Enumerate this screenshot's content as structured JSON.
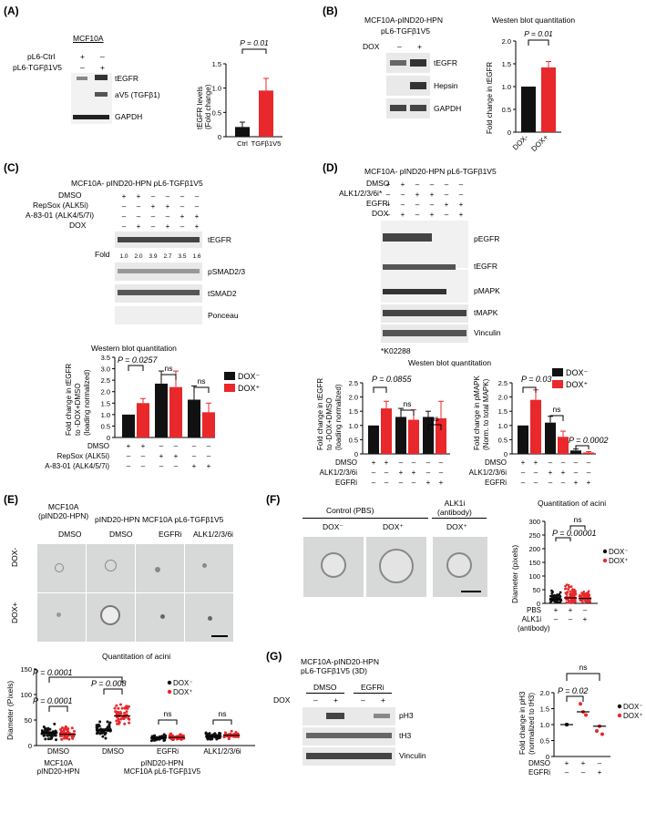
{
  "panelA": {
    "label": "(A)",
    "cell": "MCF10A",
    "rows": [
      "pL6-Ctrl",
      "pL6-TGFβ1V5"
    ],
    "row_signs": [
      [
        "+",
        "–"
      ],
      [
        "–",
        "+"
      ]
    ],
    "bands": [
      "tEGFR",
      "aV5 (TGFβ1)",
      "GAPDH"
    ],
    "chart_ylabel": "tEGFR levels\n(Fold change)",
    "pval": "P = 0.01",
    "xticks": [
      "Ctrl",
      "TGFβ1V5"
    ],
    "yticks": [
      "0",
      "0.5",
      "1.0",
      "1.5"
    ]
  },
  "panelB": {
    "label": "(B)",
    "title": "MCF10A-pIND20-HPN",
    "subtitle": "pL6-TGFβ1V5",
    "dox": "DOX",
    "dox_signs": [
      "–",
      "+"
    ],
    "bands": [
      "tEGFR",
      "Hepsin",
      "GAPDH"
    ],
    "quant_title": "Westen blot quantitation",
    "pval": "P = 0.01",
    "ylabel": "Fold change in tEGFR",
    "xticks": [
      "DOX-",
      "DOX+"
    ],
    "yticks": [
      "0",
      "0.5",
      "1.0",
      "1.5",
      "2.0"
    ]
  },
  "panelC": {
    "label": "(C)",
    "title": "MCF10A- pIND20-HPN pL6-TGFβ1V5",
    "rows": [
      "DMSO",
      "RepSox (ALK5i)",
      "A-83-01 (ALK4/5/7i)",
      "DOX"
    ],
    "signs": [
      [
        "+",
        "+",
        "–",
        "–",
        "–",
        "–"
      ],
      [
        "–",
        "–",
        "+",
        "+",
        "–",
        "–"
      ],
      [
        "–",
        "–",
        "–",
        "–",
        "+",
        "+"
      ],
      [
        "–",
        "+",
        "–",
        "+",
        "–",
        "+"
      ]
    ],
    "bands": [
      "tEGFR",
      "pSMAD2/3",
      "tSMAD2",
      "Ponceau"
    ],
    "fold_label": "Fold",
    "folds": [
      "1.0",
      "2.0",
      "3.9",
      "2.7",
      "3.5",
      "1.6"
    ],
    "quant_title": "Western blot quantitation",
    "p1": "P = 0.0257",
    "ns": [
      "ns",
      "ns"
    ],
    "ylabel": "Fold change in tEGFR\nto -DOX+DMSO\n(loading normalized)",
    "yticks": [
      "0",
      "0.5",
      "1.0",
      "1.5",
      "2.0",
      "2.5",
      "3.0",
      "3.5"
    ],
    "legend": [
      "DOX⁻",
      "DOX⁺"
    ],
    "xrows": [
      "DMSO",
      "RepSox (ALK5i)",
      "A-83-01 (ALK4/5/7i)"
    ],
    "xsigns": [
      [
        "+",
        "+",
        "–",
        "–",
        "–",
        "–"
      ],
      [
        "–",
        "–",
        "+",
        "+",
        "–",
        "–"
      ],
      [
        "–",
        "–",
        "–",
        "–",
        "+",
        "+"
      ]
    ]
  },
  "panelD": {
    "label": "(D)",
    "title": "MCF10A- pIND20-HPN pL6-TGFβ1V5",
    "rows": [
      "DMSO",
      "ALK1/2/3/6i*",
      "EGFRi",
      "DOX"
    ],
    "signs": [
      [
        "+",
        "+",
        "–",
        "–",
        "–",
        "–"
      ],
      [
        "–",
        "–",
        "+",
        "+",
        "–",
        "–"
      ],
      [
        "–",
        "–",
        "–",
        "–",
        "+",
        "+"
      ],
      [
        "–",
        "+",
        "–",
        "+",
        "–",
        "+"
      ]
    ],
    "bands": [
      "pEGFR",
      "tEGFR",
      "pMAPK",
      "tMAPK",
      "Vinculin"
    ],
    "footnote": "*K02288",
    "quant_title": "Westen blot quantitation",
    "left_p": "P = 0.0855",
    "left_ns": [
      "ns",
      "ns"
    ],
    "left_ylabel": "Fold change in tEGFR\nto -DOX+DMSO\n(loading normalized)",
    "left_yticks": [
      "0",
      "0.5",
      "1.0",
      "1.5",
      "2.0",
      "2.5"
    ],
    "right_p1": "P = 0.03",
    "right_ns": "ns",
    "right_p2": "P = 0.0002",
    "right_ylabel": "Fold change in pMAPK\n(Norm. to total MAPK)",
    "right_yticks": [
      "0",
      "0.5",
      "1.0",
      "1.5",
      "2.0",
      "2.5"
    ],
    "legend": [
      "DOX⁻",
      "DOX⁺"
    ],
    "xrows": [
      "DMSO",
      "ALK1/2/3/6i",
      "EGFRi"
    ],
    "xsigns": [
      [
        "+",
        "+",
        "–",
        "–",
        "–",
        "–"
      ],
      [
        "–",
        "–",
        "+",
        "+",
        "–",
        "–"
      ],
      [
        "–",
        "–",
        "–",
        "–",
        "+",
        "+"
      ]
    ]
  },
  "panelE": {
    "label": "(E)",
    "col_headers": [
      "MCF10A\n(pIND20-HPN)",
      "pIND20-HPN MCF10A pL6-TGFβ1V5"
    ],
    "cols": [
      "DMSO",
      "DMSO",
      "EGFRi",
      "ALK1/2/3/6i"
    ],
    "rows": [
      "DOX-",
      "DOX+"
    ],
    "quant_title": "Quantitation of acini",
    "pvals": [
      "P = 0.0001",
      "P = 0.0001",
      "P = 0.008"
    ],
    "ns": [
      "ns",
      "ns"
    ],
    "ylabel": "Diameter (Pixels)",
    "yticks": [
      "0",
      "50",
      "100",
      "150"
    ],
    "legend": [
      "DOX⁻",
      "DOX⁺"
    ],
    "xticks": [
      "DMSO",
      "DMSO",
      "EGFRi",
      "ALK1/2/3/6i"
    ],
    "xgroups": [
      "MCF10A\npIND20-HPN",
      "pIND20-HPN\nMCF10A pL6-TGFβ1V5"
    ]
  },
  "panelF": {
    "label": "(F)",
    "headers": [
      "Control (PBS)",
      "ALK1i\n(antibody)"
    ],
    "cols": [
      "DOX⁻",
      "DOX⁺",
      "DOX⁺"
    ],
    "quant_title": "Quantitation of acini",
    "ns": "ns",
    "pval": "P = 0.00001",
    "ylabel": "Diameter (pixels)",
    "yticks": [
      "0",
      "50",
      "100",
      "150",
      "200",
      "250",
      "300"
    ],
    "legend": [
      "DOX⁻",
      "DOX⁺"
    ],
    "xrows": [
      "PBS",
      "ALK1i",
      "(antibody)"
    ],
    "xsigns": [
      [
        "+",
        "+",
        "–"
      ],
      [
        "–",
        "–",
        "+"
      ]
    ]
  },
  "panelG": {
    "label": "(G)",
    "title": "MCF10A-pIND20-HPN\npL6-TGFβ1V5 (3D)",
    "groups": [
      "DMSO",
      "EGFRi"
    ],
    "dox": "DOX",
    "dox_signs": [
      "–",
      "+",
      "–",
      "+"
    ],
    "bands": [
      "pH3",
      "tH3",
      "Vinculin"
    ],
    "ns": "ns",
    "pval": "P = 0.02",
    "ylabel": "Fold change in pH3\n(normalized to tH3)",
    "yticks": [
      "0",
      "0.5",
      "1.0",
      "1.5",
      "2.0"
    ],
    "legend": [
      "DOX⁻",
      "DOX⁺"
    ],
    "xrows": [
      "DMSO",
      "EGFRi"
    ],
    "xsigns": [
      [
        "+",
        "+",
        "–"
      ],
      [
        "–",
        "–",
        "+"
      ]
    ]
  },
  "colors": {
    "black": "#111111",
    "red": "#e8282b"
  },
  "chart_data": [
    {
      "type": "bar",
      "panel": "A",
      "categories": [
        "Ctrl",
        "TGFβ1V5"
      ],
      "values": [
        0.2,
        0.95
      ],
      "errors": [
        0.1,
        0.25
      ],
      "ylim": [
        0,
        1.5
      ],
      "ylabel": "tEGFR levels (Fold change)"
    },
    {
      "type": "bar",
      "panel": "B",
      "categories": [
        "DOX-",
        "DOX+"
      ],
      "values": [
        1.0,
        1.42
      ],
      "errors": [
        0,
        0.13
      ],
      "ylim": [
        0,
        2.0
      ],
      "ylabel": "Fold change in tEGFR"
    },
    {
      "type": "bar",
      "panel": "C",
      "categories": [
        "DMSO",
        "RepSox (ALK5i)",
        "A-83-01 (ALK4/5/7i)"
      ],
      "series": [
        {
          "name": "DOX⁻",
          "values": [
            1.0,
            2.35,
            1.65
          ],
          "errors": [
            0,
            0.55,
            0.6
          ]
        },
        {
          "name": "DOX⁺",
          "values": [
            1.5,
            2.2,
            1.1
          ],
          "errors": [
            0.2,
            0.7,
            0.4
          ]
        }
      ],
      "ylim": [
        0,
        3.5
      ]
    },
    {
      "type": "bar",
      "panel": "D-left",
      "categories": [
        "DMSO",
        "ALK1/2/3/6i",
        "EGFRi"
      ],
      "series": [
        {
          "name": "DOX⁻",
          "values": [
            1.0,
            1.3,
            1.3
          ],
          "errors": [
            0,
            0.3,
            0.2
          ]
        },
        {
          "name": "DOX⁺",
          "values": [
            1.6,
            1.2,
            1.25
          ],
          "errors": [
            0.25,
            0.35,
            0.6
          ]
        }
      ],
      "ylim": [
        0,
        2.5
      ]
    },
    {
      "type": "bar",
      "panel": "D-right",
      "categories": [
        "DMSO",
        "ALK1/2/3/6i",
        "EGFRi"
      ],
      "series": [
        {
          "name": "DOX⁻",
          "values": [
            1.0,
            1.1,
            0.12
          ],
          "errors": [
            0,
            0.22,
            0.05
          ]
        },
        {
          "name": "DOX⁺",
          "values": [
            1.9,
            0.6,
            0.05
          ],
          "errors": [
            0.35,
            0.2,
            0.03
          ]
        }
      ],
      "ylim": [
        0,
        2.5
      ]
    },
    {
      "type": "scatter",
      "panel": "E",
      "categories": [
        "DMSO (MCF10A)",
        "DMSO",
        "EGFRi",
        "ALK1/2/3/6i"
      ],
      "series": [
        {
          "name": "DOX⁻",
          "medians": [
            25,
            30,
            15,
            18
          ]
        },
        {
          "name": "DOX⁺",
          "medians": [
            22,
            58,
            16,
            20
          ]
        }
      ],
      "ylim": [
        0,
        150
      ]
    },
    {
      "type": "scatter",
      "panel": "F",
      "categories": [
        "PBS",
        "PBS",
        "ALK1i"
      ],
      "series": [
        {
          "name": "DOX⁻",
          "medians": [
            15
          ]
        },
        {
          "name": "DOX⁺",
          "medians": [
            20,
            18
          ]
        }
      ],
      "ylim": [
        0,
        300
      ]
    },
    {
      "type": "scatter",
      "panel": "G",
      "categories": [
        "DMSO",
        "DMSO",
        "EGFRi"
      ],
      "series": [
        {
          "name": "DOX⁻",
          "values": [
            [
              1.0,
              1.0,
              1.0
            ]
          ]
        },
        {
          "name": "DOX⁺",
          "values": [
            [
              1.65,
              1.4,
              1.3
            ],
            [
              0.8,
              0.95,
              0.7
            ]
          ]
        }
      ],
      "medians": [
        1.0,
        1.4,
        0.95
      ],
      "ylim": [
        0,
        2.0
      ]
    }
  ]
}
